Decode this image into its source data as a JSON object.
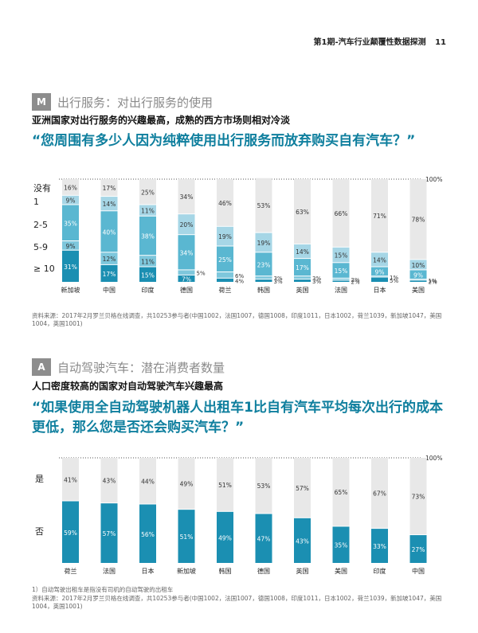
{
  "header": {
    "title": "第1期-汽车行业颠覆性数据探测",
    "page_number": "11"
  },
  "section1": {
    "badge": "M",
    "label": "出行服务：对出行服务的使用",
    "subtitle": "亚洲国家对出行服务的兴趣最高，成熟的西方市场则相对冷淡",
    "question": "“您周围有多少人因为纯粹使用出行服务而放弃购买自有汽车？”",
    "source": "资料来源：2017年2月罗兰贝格在线调查，共10253参与者(中国1002，法国1007，德国1008，印度1011，日本1002，荷兰1039，新加坡1047，美国1004，英国1001)"
  },
  "section2": {
    "badge": "A",
    "label": "自动驾驶汽车：潜在消费者数量",
    "subtitle": "人口密度较高的国家对自动驾驶汽车兴趣最高",
    "question": "“如果使用全自动驾驶机器人出租车1比自有汽车平均每次出行的成本更低，那么您是否还会购买汽车？”",
    "footnote": "1）自动驾驶出租车是指没有司机的自动驾驶的出租车",
    "source": "资料来源：2017年2月罗兰贝格在线调查，共10253参与者(中国1002，法国1007，德国1008，印度1011，日本1002，荷兰1039，新加坡1047，美国1004，英国1001)"
  },
  "colors": {
    "accent": "#0f7f9e",
    "none": "#e8e8e8",
    "c1": "#a6d6e6",
    "c25": "#5ab7d1",
    "c59": "#7ec7dc",
    "c10": "#1b8fb2"
  },
  "chart_data": [
    {
      "type": "bar",
      "stacked": true,
      "ylim": [
        0,
        100
      ],
      "reference_label": "100%",
      "row_labels": [
        "没有",
        "1",
        "2-5",
        "5-9",
        "≥ 10"
      ],
      "categories": [
        "新加坡",
        "中国",
        "印度",
        "德国",
        "荷兰",
        "韩国",
        "英国",
        "法国",
        "日本",
        "美国"
      ],
      "series": [
        {
          "name": "≥ 10",
          "values": [
            31,
            17,
            15,
            7,
            4,
            3,
            3,
            2,
            5,
            2
          ]
        },
        {
          "name": "5-9",
          "values": [
            9,
            12,
            11,
            5,
            6,
            3,
            3,
            2,
            1,
            1
          ]
        },
        {
          "name": "2-5",
          "values": [
            35,
            40,
            38,
            34,
            25,
            23,
            17,
            15,
            9,
            9
          ]
        },
        {
          "name": "1",
          "values": [
            9,
            14,
            11,
            20,
            19,
            19,
            14,
            15,
            14,
            10
          ]
        },
        {
          "name": "没有",
          "values": [
            16,
            17,
            25,
            34,
            46,
            53,
            63,
            66,
            71,
            78
          ]
        }
      ]
    },
    {
      "type": "bar",
      "stacked": true,
      "ylim": [
        0,
        100
      ],
      "reference_label": "100%",
      "row_labels": [
        "是",
        "否"
      ],
      "categories": [
        "荷兰",
        "法国",
        "日本",
        "新加坡",
        "韩国",
        "德国",
        "英国",
        "美国",
        "印度",
        "中国"
      ],
      "series": [
        {
          "name": "否",
          "values": [
            59,
            57,
            56,
            51,
            49,
            47,
            43,
            35,
            33,
            27
          ]
        },
        {
          "name": "是",
          "values": [
            41,
            43,
            44,
            49,
            51,
            53,
            57,
            65,
            67,
            73
          ]
        }
      ]
    }
  ]
}
